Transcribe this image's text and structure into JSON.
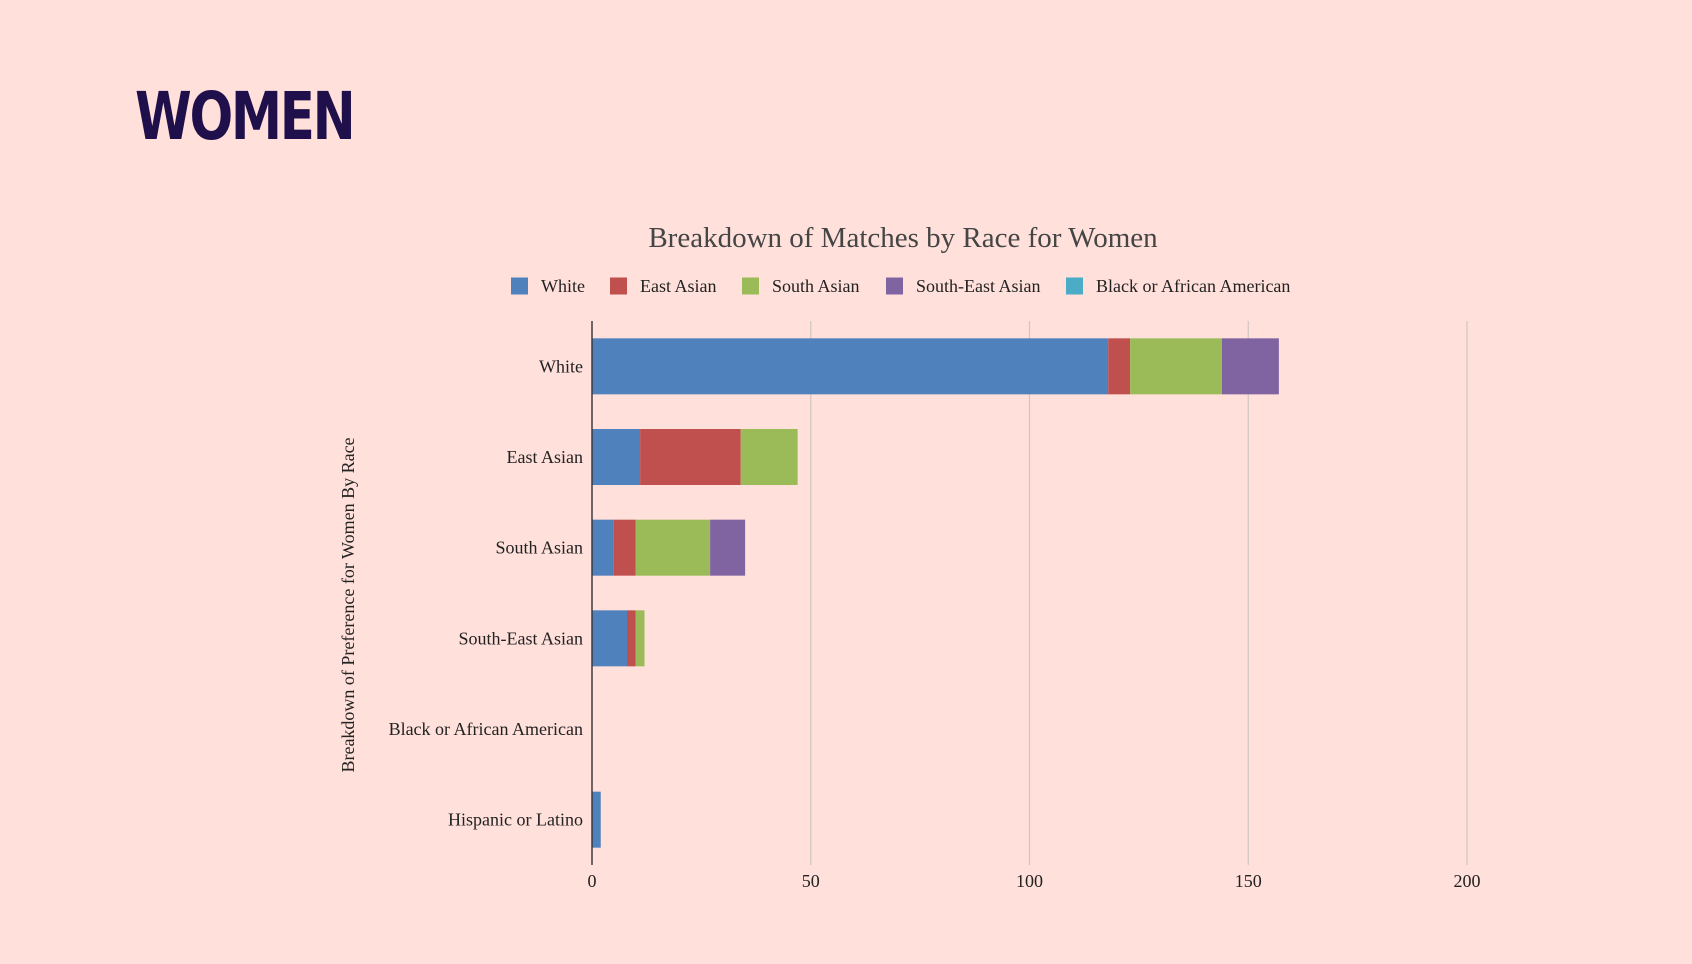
{
  "page": {
    "heading": "WOMEN"
  },
  "chart_data": {
    "type": "bar",
    "orientation": "horizontal",
    "stacked": true,
    "title": "Breakdown of Matches by Race for Women",
    "xlabel": "",
    "ylabel": "Breakdown of Preference for Women By Race",
    "xlim": [
      0,
      200
    ],
    "xticks": [
      0,
      50,
      100,
      150,
      200
    ],
    "grid": true,
    "legend_position": "top",
    "categories": [
      "White",
      "East Asian",
      "South Asian",
      "South-East Asian",
      "Black or African American",
      "Hispanic or Latino"
    ],
    "series": [
      {
        "name": "White",
        "color": "#4f81bd",
        "values": [
          118,
          11,
          5,
          8,
          0,
          2
        ]
      },
      {
        "name": "East Asian",
        "color": "#c0504d",
        "values": [
          5,
          23,
          5,
          2,
          0,
          0
        ]
      },
      {
        "name": "South Asian",
        "color": "#9bbb59",
        "values": [
          21,
          13,
          17,
          2,
          0,
          0
        ]
      },
      {
        "name": "South-East Asian",
        "color": "#8064a2",
        "values": [
          13,
          0,
          8,
          0,
          0,
          0
        ]
      },
      {
        "name": "Black or African American",
        "color": "#4bacc6",
        "values": [
          0,
          0,
          0,
          0,
          0,
          0
        ]
      }
    ]
  }
}
